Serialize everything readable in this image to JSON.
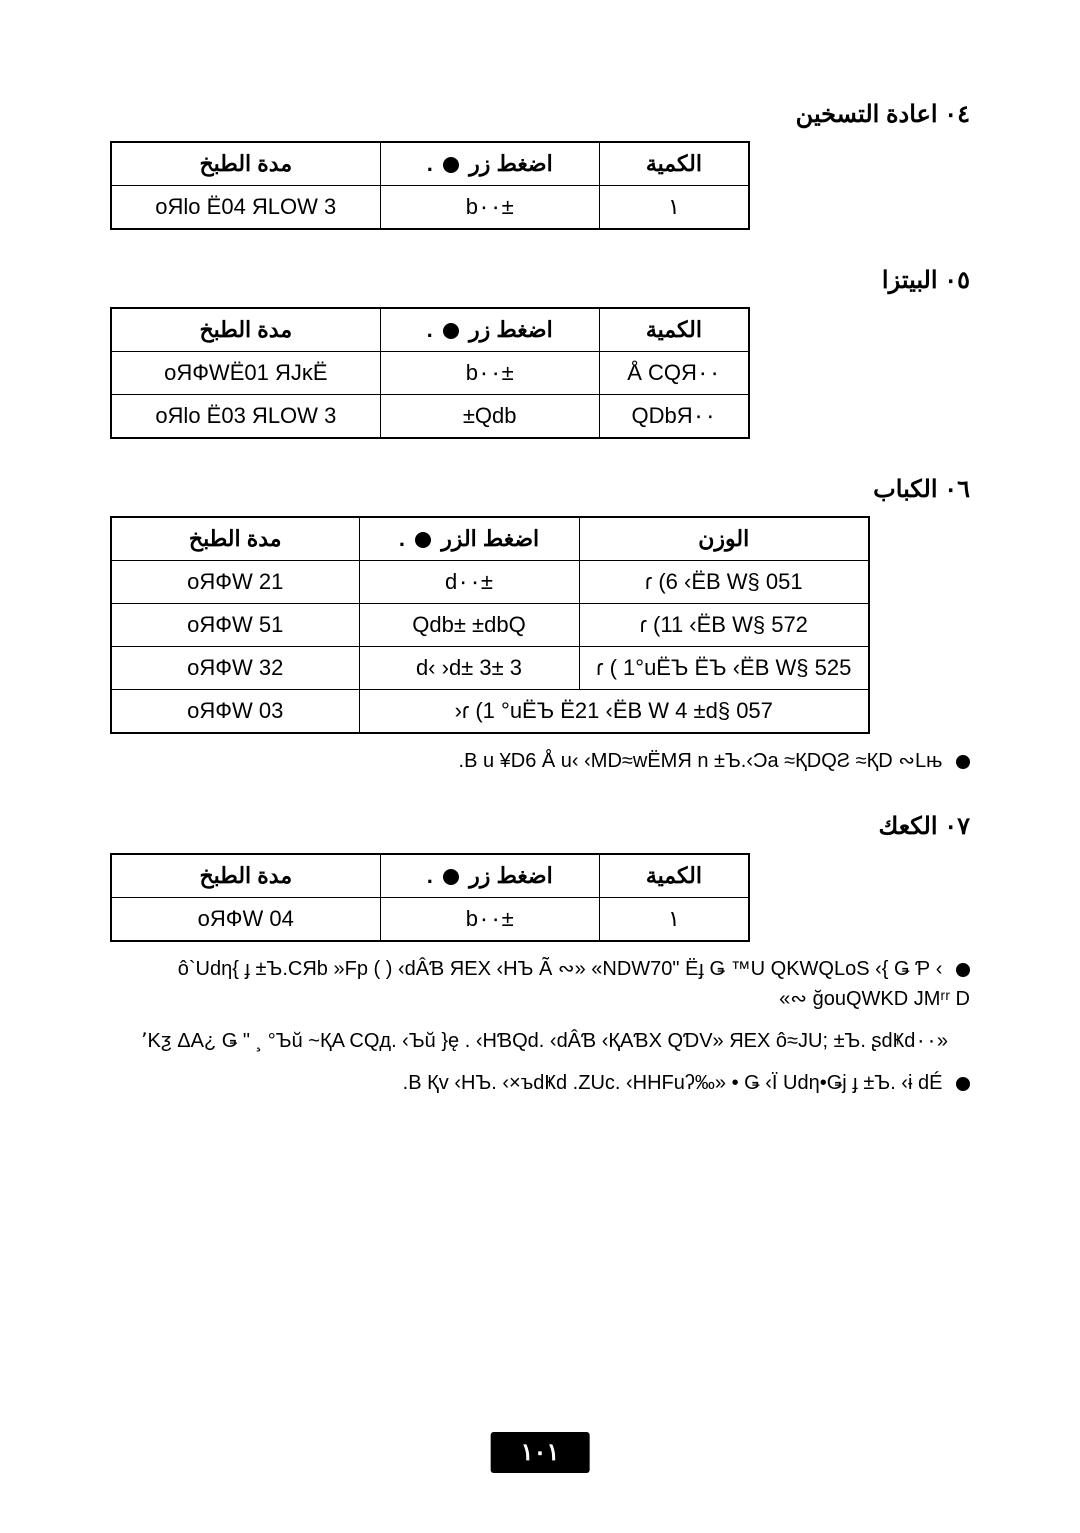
{
  "sections": {
    "s4": {
      "title": "٠٤ اعادة التسخين",
      "headers": {
        "qty": "الكمية",
        "btn_prefix": "اضغط زر",
        "time": "مدة الطبخ"
      },
      "rows": [
        {
          "qty": "١",
          "btn": "±b٠٠",
          "time": "3 oЯƖo Ë04 ЯLOW"
        }
      ]
    },
    "s5": {
      "title": "٠٥ البيتزا",
      "headers": {
        "qty": "الكمية",
        "btn_prefix": "اضغط زر",
        "time": "مدة الطبخ"
      },
      "rows": [
        {
          "qty": "Å CQЯ٠٠",
          "btn": "±b٠٠",
          "time": "oЯФWË01 ЯJĸЁ"
        },
        {
          "qty": "QDbЯ٠٠",
          "btn": "Qdb±",
          "time": "3 oЯƖo Ë03 ЯLOW"
        }
      ]
    },
    "s6": {
      "title": "٠٦ الكباب",
      "headers": {
        "weight": "الوزن",
        "btn_prefix": "اضغط الزر",
        "time": "مدة الطبخ"
      },
      "rows": [
        {
          "weight": "051 §ɾ (6 ‹ËB W",
          "btn": "±d٠٠",
          "time": "21 oЯФW"
        },
        {
          "weight": "572 §ɾ (11 ‹ËB W",
          "btn": "Qdb± ±dbQ",
          "time": "51 oЯФW"
        },
        {
          "weight": "525 §ɾ ( 1°uËЪ ËЪ ‹ËB W",
          "btn": "3 ±d‹ ›d± 3",
          "time": "32 oЯФW"
        },
        {
          "weight": "057 §ɾ (1 °uËЪ Ë21 ‹ËB W 4 ±d‹",
          "btn": "",
          "time": "03 oЯФW"
        }
      ],
      "note": "B u  ¥D6 Å u‹ ‹MD≈wËMЯ n ±Ъ.‹Ɔa ≈ҚDQƧ ≈ҚD ∾Lњ."
    },
    "s7": {
      "title": "٠٧ الكعك",
      "headers": {
        "qty": "الكمية",
        "btn_prefix": "اضغط زر",
        "time": "مدة الطبخ"
      },
      "rows": [
        {
          "qty": "١",
          "btn": "±b٠٠",
          "time": "04 oЯФW"
        }
      ],
      "notes": [
        "ô`Udƞ{  ɟ  ±Ъ.CЯb »Fp (      ) ‹dÂƁ    ЯEX ‹HЪ Ã ∾» «NDW70\" Ëɟ Ǥ ™U QKWQLoЅ ‹{  Ǥ Ƥ ‹  ğouQWKD JМʳʳ D  ∾»",
        "«ę    . ‹HƁQd. ‹dÂƁ     ‹ҚAƁX QƊV»    ЯEX ô≈JU; ±Ъ. ʂdҜd٠٠{  Ǥ  \" ¸ °Ъŭ ~ҚA CQд.  ‹Ъŭ ¿٬Kƺ ΔA",
        "B Қv ‹HЪ.  ‹×ъdҜd .ZUc. ‹HHFuʔ‰» • Ǥ ‹Ї  Udƞ•Ǥj  ɟ  ±Ъ. ‹ɨ  dÉ."
      ]
    }
  },
  "page_number": "١٠١",
  "colors": {
    "text": "#000000",
    "bg": "#ffffff",
    "pagenum_bg": "#000000",
    "pagenum_fg": "#ffffff"
  }
}
